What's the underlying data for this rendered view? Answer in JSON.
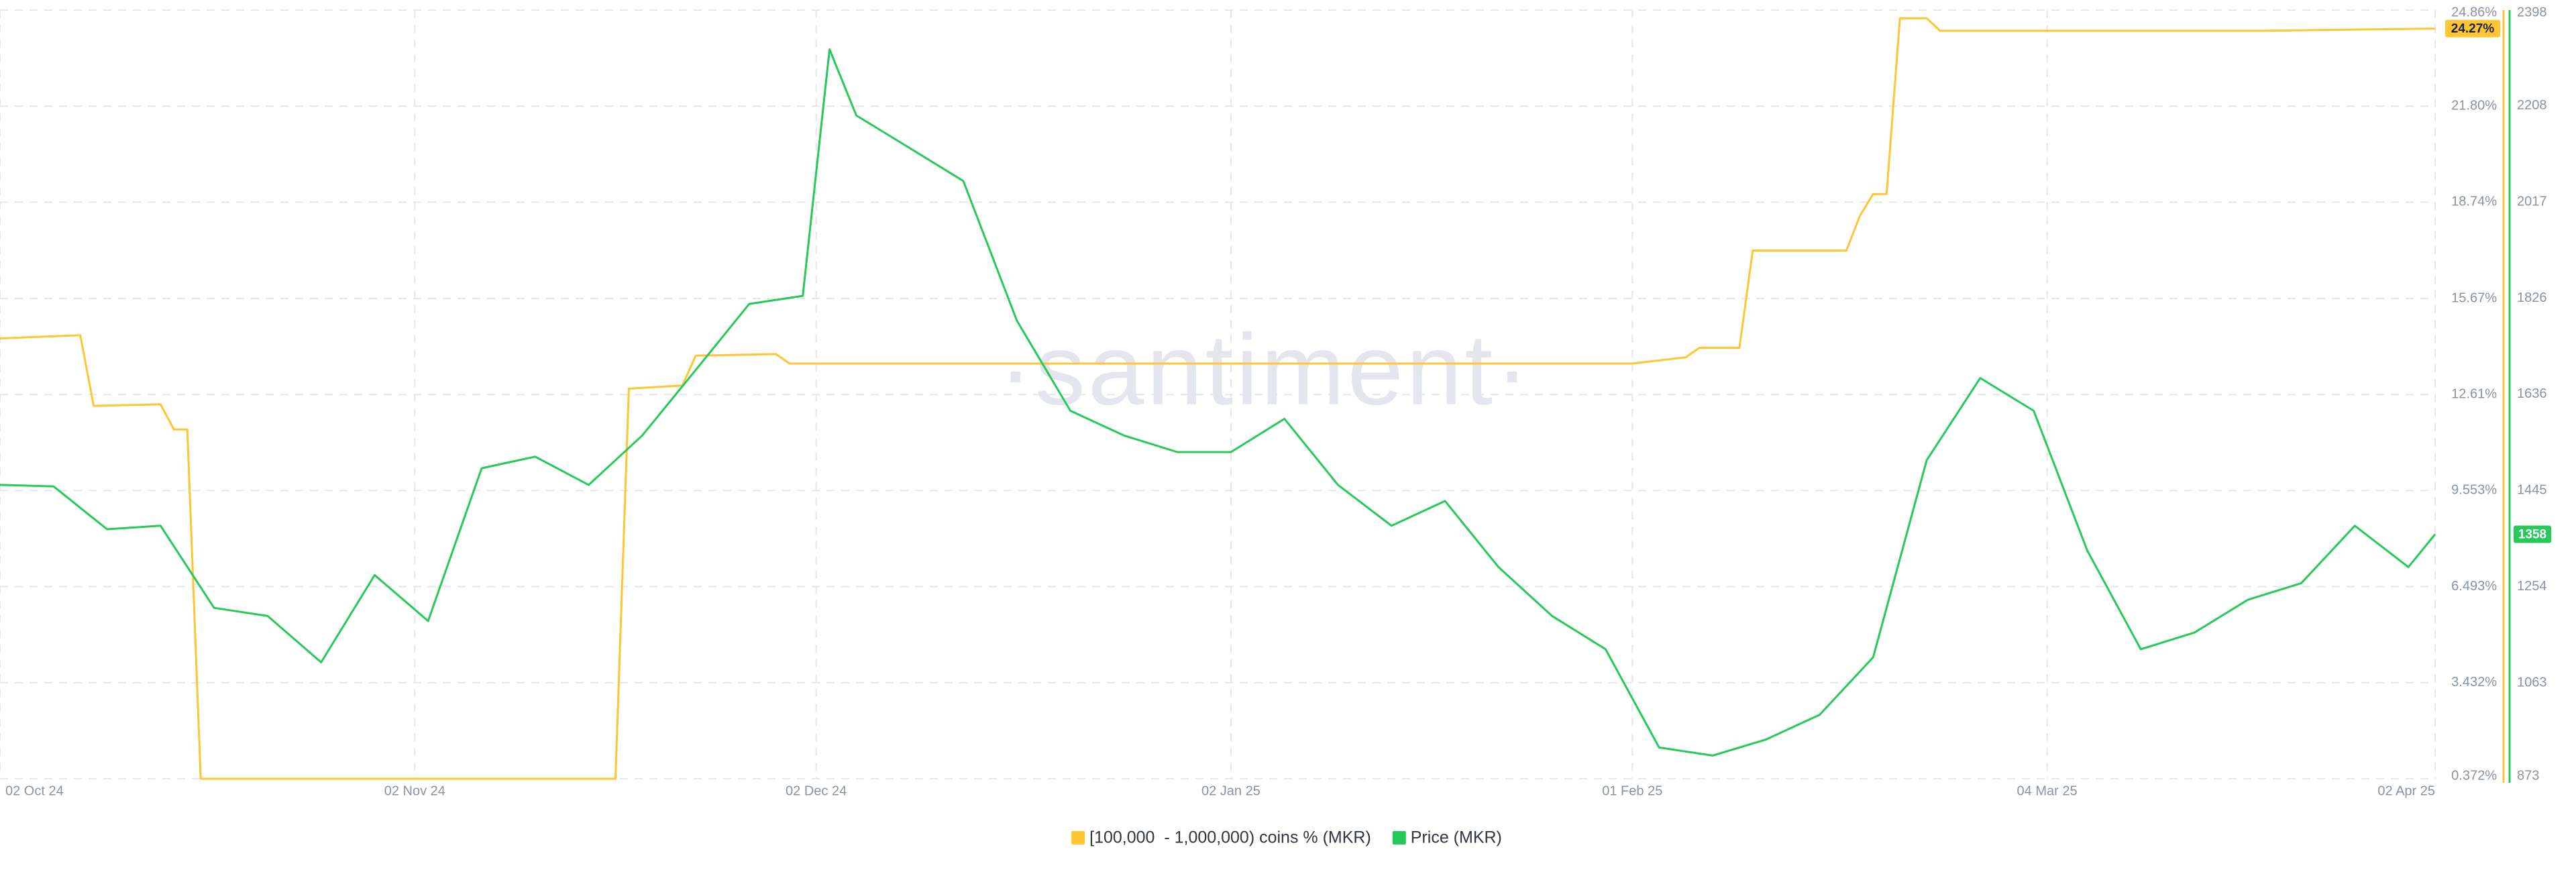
{
  "chart_data": {
    "type": "line",
    "watermark": "·santiment·",
    "xlim": [
      "2024-10-02",
      "2025-04-02"
    ],
    "xticks": [
      {
        "value": "2024-10-02",
        "label": "02 Oct 24"
      },
      {
        "value": "2024-11-02",
        "label": "02 Nov 24"
      },
      {
        "value": "2024-12-02",
        "label": "02 Dec 24"
      },
      {
        "value": "2025-01-02",
        "label": "02 Jan 25"
      },
      {
        "value": "2025-02-01",
        "label": "01 Feb 25"
      },
      {
        "value": "2025-03-04",
        "label": "04 Mar 25"
      },
      {
        "value": "2025-04-02",
        "label": "02 Apr 25"
      }
    ],
    "ylim": [
      0.372,
      24.86
    ],
    "yticks": [
      {
        "value": 24.86,
        "label": "24.86%"
      },
      {
        "value": 21.8,
        "label": "21.80%"
      },
      {
        "value": 18.74,
        "label": "18.74%"
      },
      {
        "value": 15.67,
        "label": "15.67%"
      },
      {
        "value": 12.61,
        "label": "12.61%"
      },
      {
        "value": 9.553,
        "label": "9.553%"
      },
      {
        "value": 6.493,
        "label": "6.493%"
      },
      {
        "value": 3.432,
        "label": "3.432%"
      },
      {
        "value": 0.372,
        "label": "0.372%"
      }
    ],
    "y2lim": [
      873,
      2398
    ],
    "y2ticks": [
      2398,
      2208,
      2017,
      1826,
      1636,
      1445,
      1254,
      1063,
      873
    ],
    "grid": true,
    "legend": "bottom",
    "series": [
      {
        "name": "[100,000  - 1,000,000) coins % (MKR)",
        "color": "#ffc533",
        "x": [
          "2024-10-02",
          "2024-10-08",
          "2024-10-09",
          "2024-10-14",
          "2024-10-15",
          "2024-10-16",
          "2024-10-17",
          "2024-11-17",
          "2024-11-18",
          "2024-11-22",
          "2024-11-23",
          "2024-11-29",
          "2024-11-30",
          "2025-02-01",
          "2025-02-05",
          "2025-02-06",
          "2025-02-09",
          "2025-02-10",
          "2025-02-17",
          "2025-02-18",
          "2025-02-19",
          "2025-02-20",
          "2025-02-21",
          "2025-02-23",
          "2025-02-24",
          "2025-03-20",
          "2025-04-02"
        ],
        "values": [
          14.4,
          14.5,
          12.25,
          12.3,
          11.5,
          11.5,
          0.372,
          0.372,
          12.8,
          12.9,
          13.85,
          13.9,
          13.6,
          13.6,
          13.8,
          14.1,
          14.1,
          17.2,
          17.2,
          18.3,
          19.0,
          19.0,
          24.6,
          24.6,
          24.2,
          24.2,
          24.27
        ],
        "value_labels": [
          null,
          null,
          null,
          null,
          null,
          null,
          null,
          null,
          null,
          null,
          null,
          null,
          null,
          null,
          null,
          null,
          null,
          null,
          null,
          null,
          null,
          null,
          null,
          null,
          null,
          null,
          "24.27%"
        ]
      },
      {
        "name": "Price (MKR)",
        "color": "#26c95a",
        "axis": "y2",
        "x": [
          "2024-10-02",
          "2024-10-06",
          "2024-10-10",
          "2024-10-14",
          "2024-10-18",
          "2024-10-22",
          "2024-10-26",
          "2024-10-30",
          "2024-11-03",
          "2024-11-07",
          "2024-11-11",
          "2024-11-15",
          "2024-11-19",
          "2024-11-23",
          "2024-11-27",
          "2024-12-01",
          "2024-12-03",
          "2024-12-05",
          "2024-12-09",
          "2024-12-13",
          "2024-12-17",
          "2024-12-21",
          "2024-12-25",
          "2024-12-29",
          "2025-01-02",
          "2025-01-06",
          "2025-01-10",
          "2025-01-14",
          "2025-01-18",
          "2025-01-22",
          "2025-01-26",
          "2025-01-30",
          "2025-02-03",
          "2025-02-07",
          "2025-02-11",
          "2025-02-15",
          "2025-02-19",
          "2025-02-23",
          "2025-02-27",
          "2025-03-03",
          "2025-03-07",
          "2025-03-11",
          "2025-03-15",
          "2025-03-19",
          "2025-03-23",
          "2025-03-27",
          "2025-03-31",
          "2025-04-02"
        ],
        "values": [
          1456,
          1453,
          1368,
          1375,
          1212,
          1196,
          1104,
          1277,
          1186,
          1489,
          1512,
          1456,
          1554,
          1684,
          1815,
          1831,
          2320,
          2189,
          2124,
          2059,
          1782,
          1603,
          1554,
          1521,
          1521,
          1587,
          1456,
          1375,
          1424,
          1293,
          1196,
          1130,
          935,
          919,
          951,
          1000,
          1114,
          1505,
          1668,
          1603,
          1326,
          1130,
          1163,
          1228,
          1261,
          1375,
          1293,
          1358
        ]
      }
    ]
  }
}
